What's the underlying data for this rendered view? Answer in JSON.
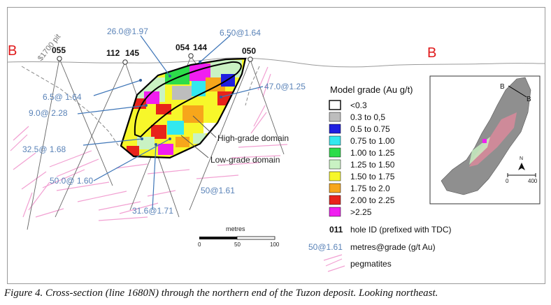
{
  "section": {
    "left_marker": "B",
    "right_marker": "B",
    "pit_label": "$1700 pit"
  },
  "holes": [
    {
      "id": "055"
    },
    {
      "id": "112"
    },
    {
      "id": "145"
    },
    {
      "id": "054"
    },
    {
      "id": "144"
    },
    {
      "id": "050"
    }
  ],
  "intercepts": [
    {
      "text": "26.0@1.97"
    },
    {
      "text": "6.50@1.64"
    },
    {
      "text": "47.0@1.25"
    },
    {
      "text": "6.5@ 1.64"
    },
    {
      "text": "9.0@ 2.28"
    },
    {
      "text": "32.5@ 1.68"
    },
    {
      "text": "50.0@ 1.60"
    },
    {
      "text": "31.6@1.71"
    },
    {
      "text": "50@1.61"
    }
  ],
  "domains": {
    "high": "High-grade domain",
    "low": "Low-grade domain"
  },
  "scale_bar": {
    "title": "metres",
    "ticks": [
      "0",
      "50",
      "100"
    ]
  },
  "legend": {
    "title": "Model grade (Au g/t)",
    "items": [
      {
        "label": "<0.3",
        "color": "#ffffff"
      },
      {
        "label": "0.3 to 0,5",
        "color": "#bdbdbd"
      },
      {
        "label": "0.5 to 0.75",
        "color": "#1f1fe0"
      },
      {
        "label": "0.75 to 1.00",
        "color": "#33e8ef"
      },
      {
        "label": "1.00 to 1.25",
        "color": "#2ddc4a"
      },
      {
        "label": "1.25 to 1.50",
        "color": "#c9f2c3"
      },
      {
        "label": "1.50 to 1.75",
        "color": "#f7f72a"
      },
      {
        "label": "1.75 to 2.0",
        "color": "#f7a61b"
      },
      {
        "label": "2.00 to 2.25",
        "color": "#e8231b"
      },
      {
        "label": ">2.25",
        "color": "#f01ef0"
      }
    ],
    "hole_id": {
      "sample": "011",
      "label": "hole ID (prefixed with TDC)"
    },
    "metres_grade": {
      "sample": "50@1.61",
      "label": "metres@grade (g/t Au)"
    },
    "pegmatites": {
      "label": "pegmatites",
      "color": "#f2a0d2"
    }
  },
  "inset": {
    "markers": [
      "B",
      "B"
    ],
    "north": "N",
    "scale_ticks": [
      "0",
      "400"
    ]
  },
  "caption": "Figure 4. Cross-section (line 1680N) through the northern end of the Tuzon deposit. Looking northeast."
}
